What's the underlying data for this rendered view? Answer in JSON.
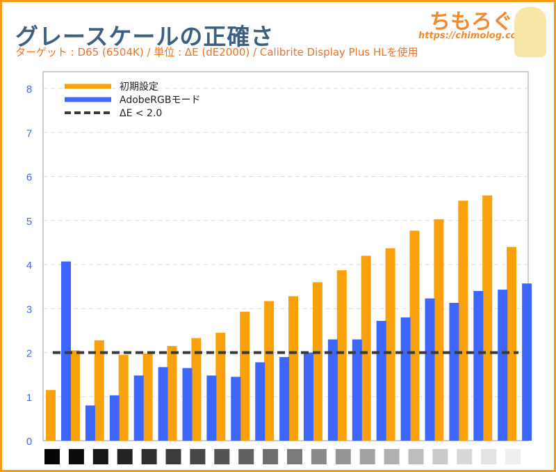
{
  "header": {
    "title": "グレースケールの正確さ",
    "subtitle": "ターゲット : D65 (6504K) / 単位 : ΔE (dE2000) / Calibrite Display Plus HLを使用",
    "logo_text": "ちもろぐ",
    "logo_url": "https://chimolog.co/"
  },
  "colors": {
    "series1": "#f9a10a",
    "series2": "#3d66ff",
    "threshold": "#3a3a3a",
    "frame": "#f39c12"
  },
  "chart_data": {
    "type": "bar",
    "title": "グレースケールの正確さ",
    "xlabel": "",
    "ylabel": "",
    "ylim": [
      0,
      8
    ],
    "yticks": [
      "0",
      "1",
      "2",
      "3",
      "4",
      "5",
      "6",
      "7",
      "8"
    ],
    "grid": true,
    "legend_position": "top-left",
    "categories_swatch_gray": [
      "#050505",
      "#0c0c0c",
      "#151515",
      "#222222",
      "#2f2f2f",
      "#3b3b3b",
      "#474747",
      "#545454",
      "#616161",
      "#6e6e6e",
      "#7b7b7b",
      "#888888",
      "#959595",
      "#a3a3a3",
      "#b0b0b0",
      "#bdbdbd",
      "#cacaca",
      "#d7d7d7",
      "#e3e3e3",
      "#efefef"
    ],
    "series": [
      {
        "name": "初期設定",
        "values": [
          1.15,
          2.05,
          2.28,
          1.95,
          1.98,
          2.15,
          2.33,
          2.45,
          2.93,
          3.17,
          3.28,
          3.6,
          3.87,
          4.2,
          4.37,
          4.77,
          5.03,
          5.45,
          5.57,
          4.4
        ]
      },
      {
        "name": "AdobeRGBモード",
        "values": [
          4.07,
          0.8,
          1.03,
          1.48,
          1.67,
          1.65,
          1.48,
          1.45,
          1.78,
          1.9,
          2.0,
          2.3,
          2.3,
          2.72,
          2.8,
          3.23,
          3.13,
          3.4,
          3.43,
          3.57
        ]
      }
    ],
    "threshold": {
      "name": "ΔE < 2.0",
      "value": 2.0
    }
  }
}
